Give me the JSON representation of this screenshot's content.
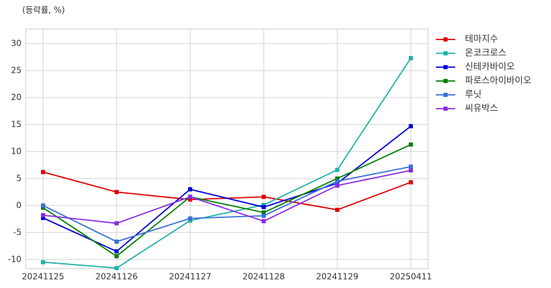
{
  "chart_data": {
    "type": "line",
    "annotation": "(등락률, %)",
    "categories": [
      "20241125",
      "20241126",
      "20241127",
      "20241128",
      "20241129",
      "20250411"
    ],
    "series": [
      {
        "name": "테마지수",
        "color": "#dd0000",
        "values": [
          6.2,
          2.5,
          1.1,
          1.6,
          -0.8,
          4.3
        ]
      },
      {
        "name": "온코크로스",
        "color": "#20b2aa",
        "values": [
          -10.5,
          -11.6,
          -2.8,
          0.1,
          6.6,
          27.3
        ]
      },
      {
        "name": "신테카바이오",
        "color": "#0000dd",
        "values": [
          -2.3,
          -8.5,
          3.0,
          -0.3,
          4.1,
          14.7
        ]
      },
      {
        "name": "파로스아이바이오",
        "color": "#008000",
        "values": [
          -0.4,
          -9.4,
          1.6,
          -1.3,
          5.0,
          11.3
        ]
      },
      {
        "name": "루닛",
        "color": "#3a6fd8",
        "values": [
          0,
          -6.7,
          -2.4,
          -1.9,
          4.5,
          7.2
        ]
      },
      {
        "name": "씨유박스",
        "color": "#8a2be2",
        "values": [
          -1.8,
          -3.3,
          1.6,
          -2.9,
          3.7,
          6.5
        ]
      }
    ],
    "ylim": [
      -11.7,
      32.7
    ],
    "yticks": [
      -10,
      -5,
      0,
      5,
      10,
      15,
      20,
      25,
      30
    ],
    "grid": true,
    "legend": "right"
  }
}
